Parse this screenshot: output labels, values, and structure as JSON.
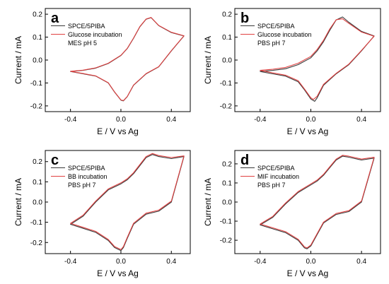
{
  "colors": {
    "series_a": "#3a3a3a",
    "series_b": "#e04040",
    "frame": "#000000"
  },
  "chart_data": [
    {
      "panel": "a",
      "type": "line",
      "xlabel": "E / V vs Ag",
      "ylabel": "Current / mA",
      "xlim": [
        -0.6,
        0.55
      ],
      "ylim": [
        -0.225,
        0.225
      ],
      "xticks": [
        -0.4,
        0.0,
        0.4
      ],
      "yticks": [
        -0.2,
        -0.1,
        0.0,
        0.1,
        0.2
      ],
      "xtick_labels": [
        "-0.4",
        "0.0",
        "0.4"
      ],
      "ytick_labels": [
        "-0.2",
        "-0.1",
        "0.0",
        "0.1",
        "0.2"
      ],
      "legend": [
        "SPCE/5PIBA",
        "Glucose incubation",
        "MES pH 5"
      ],
      "series": [
        {
          "name": "SPCE/5PIBA",
          "color": "#3a3a3a",
          "x": [
            -0.4,
            -0.3,
            -0.2,
            -0.1,
            0.0,
            0.05,
            0.1,
            0.15,
            0.2,
            0.24,
            0.3,
            0.4,
            0.5,
            0.5,
            0.4,
            0.3,
            0.2,
            0.1,
            0.05,
            0.02,
            0.0,
            -0.05,
            -0.1,
            -0.2,
            -0.3,
            -0.4
          ],
          "y": [
            -0.05,
            -0.045,
            -0.035,
            -0.015,
            0.02,
            0.05,
            0.095,
            0.145,
            0.178,
            0.185,
            0.15,
            0.12,
            0.105,
            0.105,
            0.04,
            -0.03,
            -0.06,
            -0.11,
            -0.16,
            -0.178,
            -0.175,
            -0.14,
            -0.1,
            -0.07,
            -0.06,
            -0.05
          ]
        },
        {
          "name": "Glucose incubation",
          "color": "#e04040",
          "x": [
            -0.4,
            -0.3,
            -0.2,
            -0.1,
            0.0,
            0.05,
            0.1,
            0.15,
            0.2,
            0.24,
            0.3,
            0.4,
            0.5,
            0.5,
            0.4,
            0.3,
            0.2,
            0.1,
            0.05,
            0.02,
            0.0,
            -0.05,
            -0.1,
            -0.2,
            -0.3,
            -0.4
          ],
          "y": [
            -0.049,
            -0.044,
            -0.034,
            -0.014,
            0.021,
            0.051,
            0.096,
            0.146,
            0.179,
            0.186,
            0.151,
            0.121,
            0.106,
            0.106,
            0.041,
            -0.029,
            -0.059,
            -0.109,
            -0.159,
            -0.177,
            -0.174,
            -0.139,
            -0.099,
            -0.069,
            -0.059,
            -0.049
          ]
        }
      ]
    },
    {
      "panel": "b",
      "type": "line",
      "xlabel": "E / V vs Ag",
      "ylabel": "Current / mA",
      "xlim": [
        -0.6,
        0.55
      ],
      "ylim": [
        -0.225,
        0.225
      ],
      "xticks": [
        -0.4,
        0.0,
        0.4
      ],
      "yticks": [
        -0.2,
        -0.1,
        0.0,
        0.1,
        0.2
      ],
      "xtick_labels": [
        "-0.4",
        "0.0",
        "0.4"
      ],
      "ytick_labels": [
        "-0.2",
        "-0.1",
        "0.0",
        "0.1",
        "0.2"
      ],
      "legend": [
        "SPCE/5PIBA",
        "Glucose incubation",
        "PBS pH 7"
      ],
      "series": [
        {
          "name": "SPCE/5PIBA",
          "color": "#3a3a3a",
          "x": [
            -0.4,
            -0.3,
            -0.2,
            -0.1,
            0.0,
            0.05,
            0.1,
            0.15,
            0.2,
            0.25,
            0.3,
            0.4,
            0.5,
            0.5,
            0.4,
            0.3,
            0.2,
            0.1,
            0.05,
            0.03,
            0.0,
            -0.05,
            -0.1,
            -0.2,
            -0.3,
            -0.4
          ],
          "y": [
            -0.05,
            -0.045,
            -0.038,
            -0.02,
            0.01,
            0.04,
            0.08,
            0.13,
            0.175,
            0.188,
            0.165,
            0.125,
            0.105,
            0.105,
            0.04,
            -0.02,
            -0.06,
            -0.11,
            -0.165,
            -0.18,
            -0.17,
            -0.13,
            -0.095,
            -0.07,
            -0.06,
            -0.05
          ]
        },
        {
          "name": "Glucose incubation",
          "color": "#e04040",
          "x": [
            -0.4,
            -0.3,
            -0.2,
            -0.1,
            0.0,
            0.05,
            0.1,
            0.15,
            0.2,
            0.25,
            0.3,
            0.4,
            0.5,
            0.5,
            0.4,
            0.3,
            0.2,
            0.1,
            0.05,
            0.02,
            0.0,
            -0.05,
            -0.1,
            -0.2,
            -0.3,
            -0.4
          ],
          "y": [
            -0.045,
            -0.04,
            -0.032,
            -0.014,
            0.016,
            0.046,
            0.086,
            0.136,
            0.176,
            0.18,
            0.16,
            0.122,
            0.104,
            0.104,
            0.042,
            -0.018,
            -0.058,
            -0.106,
            -0.158,
            -0.172,
            -0.165,
            -0.126,
            -0.09,
            -0.066,
            -0.056,
            -0.045
          ]
        }
      ]
    },
    {
      "panel": "c",
      "type": "line",
      "xlabel": "E / V vs Ag",
      "ylabel": "Current / mA",
      "xlim": [
        -0.6,
        0.55
      ],
      "ylim": [
        -0.255,
        0.255
      ],
      "xticks": [
        -0.4,
        0.0,
        0.4
      ],
      "yticks": [
        -0.2,
        -0.1,
        0.0,
        0.1,
        0.2
      ],
      "xtick_labels": [
        "-0.4",
        "0.0",
        "0.4"
      ],
      "ytick_labels": [
        "-0.2",
        "-0.1",
        "0.0",
        "0.1",
        "0.2"
      ],
      "legend": [
        "SPCE/5PIBA",
        "BB incubation",
        "PBS pH 7"
      ],
      "series": [
        {
          "name": "SPCE/5PIBA",
          "color": "#3a3a3a",
          "x": [
            -0.4,
            -0.3,
            -0.2,
            -0.1,
            0.0,
            0.05,
            0.1,
            0.15,
            0.2,
            0.25,
            0.3,
            0.4,
            0.5,
            0.5,
            0.4,
            0.3,
            0.2,
            0.1,
            0.05,
            0.02,
            0.0,
            -0.05,
            -0.1,
            -0.2,
            -0.3,
            -0.4
          ],
          "y": [
            -0.11,
            -0.07,
            0.0,
            0.06,
            0.09,
            0.11,
            0.14,
            0.18,
            0.22,
            0.235,
            0.225,
            0.215,
            0.225,
            0.225,
            0.0,
            -0.045,
            -0.06,
            -0.11,
            -0.18,
            -0.225,
            -0.24,
            -0.225,
            -0.19,
            -0.15,
            -0.13,
            -0.11
          ]
        },
        {
          "name": "BB incubation",
          "color": "#e04040",
          "x": [
            -0.4,
            -0.3,
            -0.2,
            -0.1,
            0.0,
            0.05,
            0.1,
            0.15,
            0.2,
            0.25,
            0.3,
            0.4,
            0.5,
            0.5,
            0.4,
            0.3,
            0.2,
            0.1,
            0.05,
            0.02,
            0.0,
            -0.05,
            -0.1,
            -0.2,
            -0.3,
            -0.4
          ],
          "y": [
            -0.105,
            -0.065,
            0.005,
            0.065,
            0.095,
            0.115,
            0.145,
            0.185,
            0.225,
            0.24,
            0.23,
            0.22,
            0.228,
            0.228,
            0.005,
            -0.04,
            -0.055,
            -0.105,
            -0.175,
            -0.22,
            -0.235,
            -0.22,
            -0.185,
            -0.145,
            -0.125,
            -0.105
          ]
        }
      ]
    },
    {
      "panel": "d",
      "type": "line",
      "xlabel": "E / V vs Ag",
      "ylabel": "Current / mA",
      "xlim": [
        -0.6,
        0.55
      ],
      "ylim": [
        -0.27,
        0.27
      ],
      "xticks": [
        -0.4,
        0.0,
        0.4
      ],
      "yticks": [
        -0.2,
        -0.1,
        0.0,
        0.1,
        0.2
      ],
      "xtick_labels": [
        "-0.4",
        "0.0",
        "0.4"
      ],
      "ytick_labels": [
        "-0.2",
        "-0.1",
        "0.0",
        "0.1",
        "0.2"
      ],
      "legend": [
        "SPCE/5PIBA",
        "MIF incubation",
        "PBS pH 7"
      ],
      "series": [
        {
          "name": "SPCE/5PIBA",
          "color": "#3a3a3a",
          "x": [
            -0.4,
            -0.3,
            -0.2,
            -0.1,
            0.0,
            0.05,
            0.1,
            0.15,
            0.2,
            0.25,
            0.3,
            0.4,
            0.5,
            0.5,
            0.4,
            0.3,
            0.2,
            0.1,
            0.05,
            0.0,
            -0.03,
            -0.05,
            -0.1,
            -0.2,
            -0.3,
            -0.4
          ],
          "y": [
            -0.12,
            -0.08,
            -0.01,
            0.05,
            0.09,
            0.11,
            0.14,
            0.18,
            0.22,
            0.24,
            0.235,
            0.22,
            0.23,
            0.23,
            0.0,
            -0.05,
            -0.065,
            -0.11,
            -0.17,
            -0.23,
            -0.245,
            -0.24,
            -0.2,
            -0.16,
            -0.14,
            -0.12
          ]
        },
        {
          "name": "MIF incubation",
          "color": "#e04040",
          "x": [
            -0.4,
            -0.3,
            -0.2,
            -0.1,
            0.0,
            0.05,
            0.1,
            0.15,
            0.2,
            0.25,
            0.3,
            0.4,
            0.5,
            0.5,
            0.4,
            0.3,
            0.2,
            0.1,
            0.05,
            0.0,
            -0.03,
            -0.05,
            -0.1,
            -0.2,
            -0.3,
            -0.4
          ],
          "y": [
            -0.115,
            -0.075,
            -0.005,
            0.055,
            0.095,
            0.115,
            0.145,
            0.185,
            0.225,
            0.245,
            0.24,
            0.225,
            0.235,
            0.235,
            0.005,
            -0.045,
            -0.06,
            -0.105,
            -0.165,
            -0.225,
            -0.24,
            -0.235,
            -0.195,
            -0.155,
            -0.135,
            -0.115
          ]
        }
      ]
    }
  ]
}
